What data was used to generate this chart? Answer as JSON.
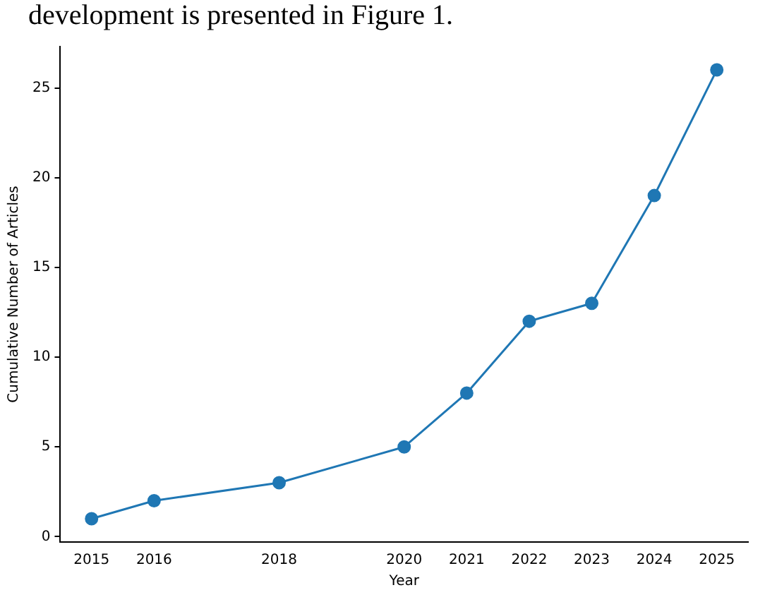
{
  "chart_data": {
    "type": "line",
    "xlabel": "Year",
    "ylabel": "Cumulative Number of Articles",
    "annotations": [
      "development is presented in Figure 1."
    ],
    "x": [
      2015,
      2016,
      2018,
      2020,
      2021,
      2022,
      2023,
      2024,
      2025
    ],
    "series": [
      {
        "color": "#1f77b4",
        "values": [
          1,
          2,
          3,
          5,
          8,
          12,
          13,
          19,
          26
        ]
      }
    ],
    "xlim": [
      2014.5,
      2025.5
    ],
    "xticks": [
      2015,
      2016,
      2018,
      2020,
      2021,
      2022,
      2023,
      2024,
      2025
    ],
    "ylim": [
      -0.3,
      27.3
    ],
    "yticks": [
      0,
      5,
      10,
      15,
      20,
      25
    ],
    "marker": "circle",
    "line_style": "solid",
    "grid": false,
    "legend": false
  }
}
